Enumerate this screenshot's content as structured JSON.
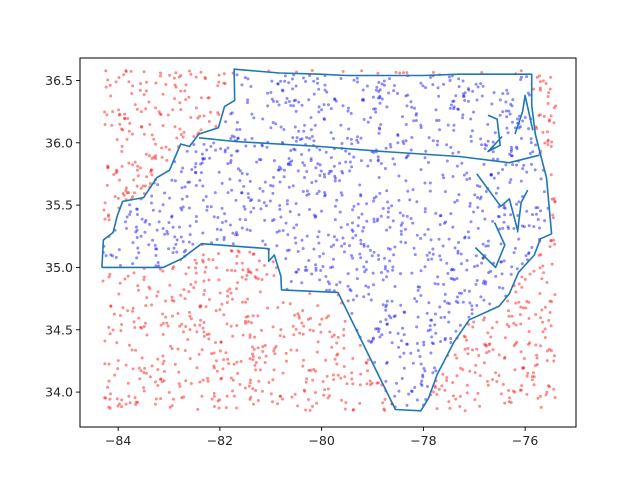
{
  "chart_data": {
    "type": "scatter",
    "title": "",
    "xlabel": "",
    "ylabel": "",
    "xlim": [
      -84.75,
      -75.0
    ],
    "ylim": [
      33.72,
      36.68
    ],
    "x_ticks": [
      -84,
      -82,
      -80,
      -78,
      -76
    ],
    "y_ticks": [
      34.0,
      34.5,
      35.0,
      35.5,
      36.0,
      36.5
    ],
    "x_tick_labels": [
      "−84",
      "−82",
      "−80",
      "−78",
      "−76"
    ],
    "y_tick_labels": [
      "34.0",
      "34.5",
      "35.0",
      "35.5",
      "36.0",
      "36.5"
    ],
    "grid": false,
    "legend": "none",
    "point_count_approx": 2000,
    "x_range": [
      -84.3,
      -75.4
    ],
    "y_range": [
      33.85,
      36.58
    ],
    "series": [
      {
        "color": "#0000ff",
        "alpha": 0.45,
        "description_rule": "points inside boundary"
      },
      {
        "color": "#ff0000",
        "alpha": 0.45,
        "description_rule": "points outside boundary"
      }
    ],
    "boundary_color": "#1f77b4",
    "boundary": [
      [
        -84.32,
        35.0
      ],
      [
        -84.29,
        35.22
      ],
      [
        -84.1,
        35.28
      ],
      [
        -84.02,
        35.41
      ],
      [
        -83.91,
        35.53
      ],
      [
        -83.5,
        35.56
      ],
      [
        -83.24,
        35.72
      ],
      [
        -82.99,
        35.78
      ],
      [
        -82.77,
        35.99
      ],
      [
        -82.6,
        35.97
      ],
      [
        -82.41,
        36.07
      ],
      [
        -82.03,
        36.12
      ],
      [
        -81.91,
        36.29
      ],
      [
        -81.71,
        36.34
      ],
      [
        -81.72,
        36.59
      ],
      [
        -80.83,
        36.56
      ],
      [
        -80.03,
        36.55
      ],
      [
        -79.5,
        36.54
      ],
      [
        -78.79,
        36.54
      ],
      [
        -78.0,
        36.54
      ],
      [
        -77.3,
        36.55
      ],
      [
        -76.92,
        36.55
      ],
      [
        -76.31,
        36.55
      ],
      [
        -75.87,
        36.55
      ],
      [
        -75.87,
        36.3
      ],
      [
        -75.8,
        36.07
      ],
      [
        -75.72,
        35.94
      ],
      [
        -75.58,
        35.72
      ],
      [
        -75.48,
        35.27
      ],
      [
        -75.7,
        35.23
      ],
      [
        -75.82,
        35.1
      ],
      [
        -76.13,
        34.96
      ],
      [
        -76.31,
        34.79
      ],
      [
        -76.51,
        34.69
      ],
      [
        -77.1,
        34.58
      ],
      [
        -77.4,
        34.4
      ],
      [
        -77.73,
        34.14
      ],
      [
        -77.9,
        33.95
      ],
      [
        -78.05,
        33.85
      ],
      [
        -78.55,
        33.86
      ],
      [
        -79.07,
        34.29
      ],
      [
        -79.68,
        34.8
      ],
      [
        -80.79,
        34.82
      ],
      [
        -80.8,
        34.93
      ],
      [
        -80.93,
        35.1
      ],
      [
        -81.04,
        35.05
      ],
      [
        -81.04,
        35.15
      ],
      [
        -82.36,
        35.19
      ],
      [
        -82.75,
        35.07
      ],
      [
        -83.11,
        35.0
      ],
      [
        -84.32,
        35.0
      ]
    ],
    "inner_boundary_lines": [
      [
        [
          -82.41,
          36.04
        ],
        [
          -81.7,
          36.01
        ],
        [
          -80.03,
          35.97
        ],
        [
          -78.79,
          35.93
        ],
        [
          -77.3,
          35.89
        ],
        [
          -76.31,
          35.84
        ],
        [
          -75.72,
          35.9
        ]
      ]
    ],
    "sound_lines": [
      [
        [
          -76.73,
          36.22
        ],
        [
          -76.55,
          36.19
        ],
        [
          -76.49,
          35.98
        ],
        [
          -76.73,
          35.93
        ],
        [
          -76.45,
          36.05
        ]
      ],
      [
        [
          -76.2,
          36.07
        ],
        [
          -76.05,
          36.25
        ],
        [
          -76.0,
          36.38
        ],
        [
          -75.85,
          36.1
        ]
      ],
      [
        [
          -76.95,
          35.75
        ],
        [
          -76.48,
          35.49
        ],
        [
          -76.31,
          35.55
        ],
        [
          -76.15,
          35.3
        ]
      ],
      [
        [
          -76.98,
          35.16
        ],
        [
          -76.58,
          35.0
        ],
        [
          -76.4,
          35.18
        ],
        [
          -76.6,
          35.36
        ]
      ],
      [
        [
          -76.15,
          35.28
        ],
        [
          -76.08,
          35.52
        ],
        [
          -75.95,
          35.62
        ]
      ]
    ]
  }
}
